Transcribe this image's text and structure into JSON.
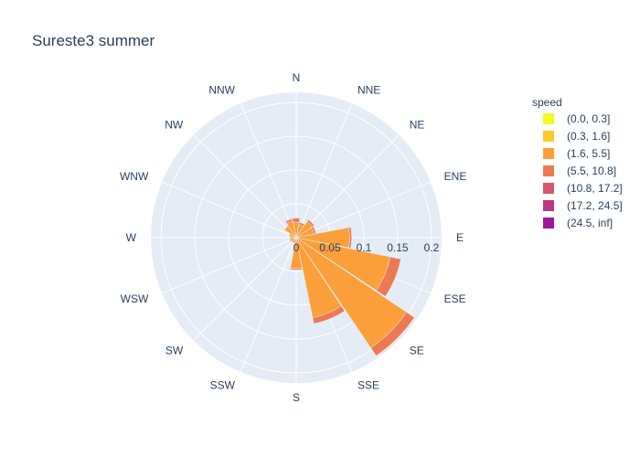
{
  "chart_data": {
    "type": "barpolar",
    "title": "Sureste3 summer",
    "angular_axis": {
      "direction": "clockwise",
      "rotation_deg": 90,
      "categories": [
        "N",
        "NNE",
        "NE",
        "ENE",
        "E",
        "ESE",
        "SE",
        "SSE",
        "S",
        "SSW",
        "SW",
        "WSW",
        "W",
        "WNW",
        "NW",
        "NNW"
      ]
    },
    "radial_axis": {
      "range": [
        0,
        0.215
      ],
      "ticks": [
        0,
        0.05,
        0.1,
        0.15,
        0.2
      ],
      "tick_labels": [
        "0",
        "0.05",
        "0.1",
        "0.15",
        "0.2"
      ]
    },
    "legend": {
      "title": "speed",
      "placement": "right"
    },
    "grid": true,
    "series": [
      {
        "name": "(0.0, 0.3]",
        "color": "#f0f921",
        "values": [
          0,
          0,
          0,
          0,
          0,
          0,
          0,
          0,
          0,
          0,
          0,
          0,
          0,
          0,
          0,
          0
        ]
      },
      {
        "name": "(0.3, 1.6]",
        "color": "#fdca26",
        "values": [
          0.001,
          0.001,
          0.001,
          0.001,
          0.002,
          0.002,
          0.002,
          0.001,
          0.001,
          0.001,
          0.001,
          0.001,
          0.001,
          0.001,
          0.001,
          0.001
        ]
      },
      {
        "name": "(1.6, 5.5]",
        "color": "#fb9f3a",
        "values": [
          0.022,
          0.019,
          0.028,
          0.026,
          0.077,
          0.14,
          0.195,
          0.12,
          0.045,
          0.007,
          0.008,
          0.009,
          0.008,
          0.01,
          0.02,
          0.024
        ]
      },
      {
        "name": "(5.5, 10.8]",
        "color": "#ed7953",
        "values": [
          0.006,
          0.003,
          0.003,
          0.003,
          0.003,
          0.016,
          0.014,
          0.009,
          0.002,
          0,
          0,
          0,
          0,
          0,
          0,
          0.003
        ]
      },
      {
        "name": "(10.8, 17.2]",
        "color": "#d8576b",
        "values": [
          0,
          0,
          0,
          0,
          0,
          0,
          0,
          0,
          0,
          0,
          0,
          0,
          0,
          0,
          0,
          0.001
        ]
      },
      {
        "name": "(17.2, 24.5]",
        "color": "#bd3786",
        "values": [
          0,
          0,
          0,
          0,
          0,
          0,
          0,
          0,
          0,
          0,
          0,
          0,
          0,
          0,
          0,
          0
        ]
      },
      {
        "name": "(24.5, inf]",
        "color": "#9c179e",
        "values": [
          0,
          0,
          0,
          0,
          0,
          0,
          0,
          0,
          0,
          0,
          0,
          0,
          0,
          0,
          0,
          0
        ]
      }
    ]
  }
}
